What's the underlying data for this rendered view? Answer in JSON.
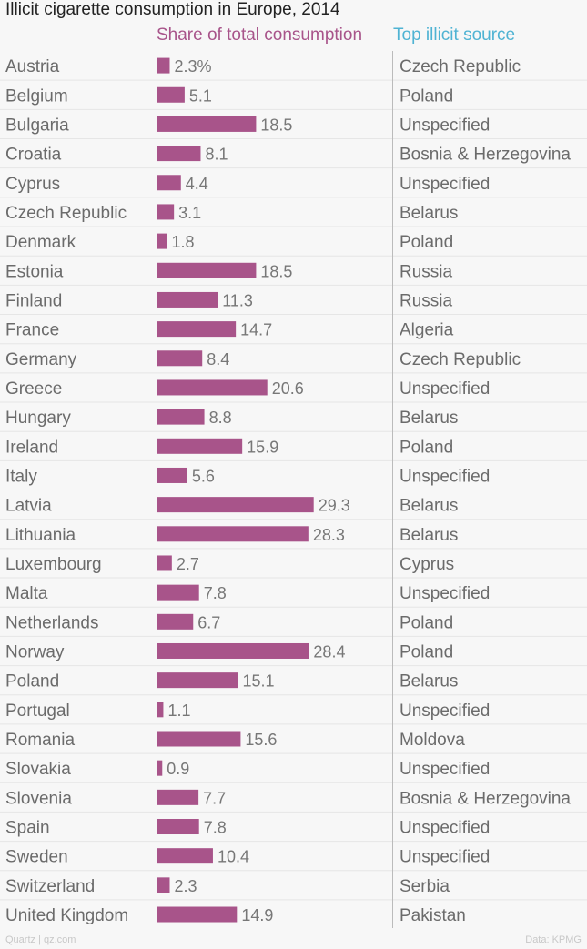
{
  "chart_data": {
    "type": "bar",
    "title": "Illicit cigarette consumption in Europe, 2014",
    "value_header": "Share of total consumption",
    "source_header": "Top illicit source",
    "unit_suffix": "%",
    "categories": [
      "Austria",
      "Belgium",
      "Bulgaria",
      "Croatia",
      "Cyprus",
      "Czech Republic",
      "Denmark",
      "Estonia",
      "Finland",
      "France",
      "Germany",
      "Greece",
      "Hungary",
      "Ireland",
      "Italy",
      "Latvia",
      "Lithuania",
      "Luxembourg",
      "Malta",
      "Netherlands",
      "Norway",
      "Poland",
      "Portugal",
      "Romania",
      "Slovakia",
      "Slovenia",
      "Spain",
      "Sweden",
      "Switzerland",
      "United Kingdom"
    ],
    "values": [
      2.3,
      5.1,
      18.5,
      8.1,
      4.4,
      3.1,
      1.8,
      18.5,
      11.3,
      14.7,
      8.4,
      20.6,
      8.8,
      15.9,
      5.6,
      29.3,
      28.3,
      2.7,
      7.8,
      6.7,
      28.4,
      15.1,
      1.1,
      15.6,
      0.9,
      7.7,
      7.8,
      10.4,
      2.3,
      14.9
    ],
    "sources": [
      "Czech Republic",
      "Poland",
      "Unspecified",
      "Bosnia & Herzegovina",
      "Unspecified",
      "Belarus",
      "Poland",
      "Russia",
      "Russia",
      "Algeria",
      "Czech Republic",
      "Unspecified",
      "Belarus",
      "Poland",
      "Unspecified",
      "Belarus",
      "Belarus",
      "Cyprus",
      "Unspecified",
      "Poland",
      "Poland",
      "Belarus",
      "Unspecified",
      "Moldova",
      "Unspecified",
      "Bosnia & Herzegovina",
      "Unspecified",
      "Unspecified",
      "Serbia",
      "Pakistan"
    ],
    "xlim": [
      0,
      30
    ],
    "colors": {
      "bar": "#a8548a",
      "value_header": "#a8548a",
      "source_header": "#4fb3d3"
    }
  },
  "footer": {
    "left": "Quartz | qz.com",
    "right": "Data: KPMG"
  }
}
